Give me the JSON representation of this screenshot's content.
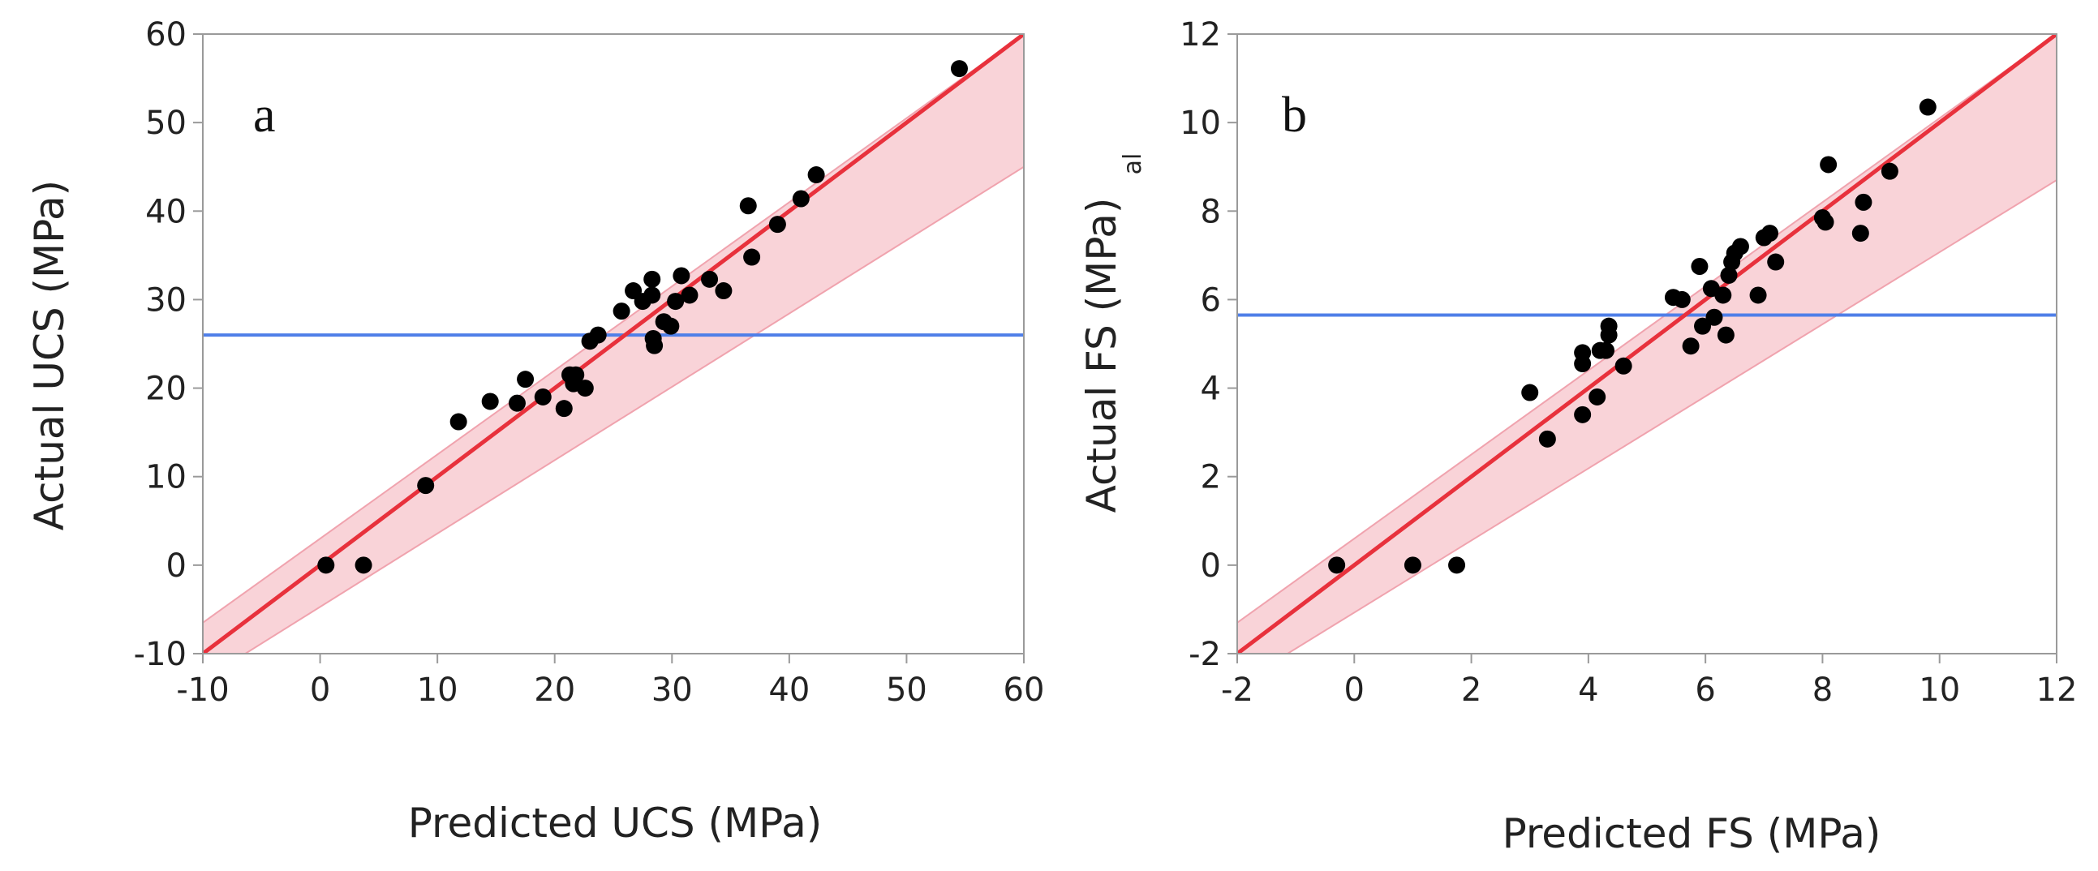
{
  "chart_data": [
    {
      "type": "scatter",
      "panel_label": "a",
      "xlabel": "Predicted UCS (MPa)",
      "ylabel": "Actual UCS (MPa)",
      "xlim": [
        -10,
        60
      ],
      "ylim": [
        -10,
        60
      ],
      "xticks": [
        "-10",
        "0",
        "10",
        "20",
        "30",
        "40",
        "50",
        "60"
      ],
      "yticks": [
        "-10",
        "0",
        "10",
        "20",
        "30",
        "40",
        "50",
        "60"
      ],
      "mean_line_y": 26,
      "fit_line": {
        "slope": 1,
        "intercept": 0
      },
      "band": {
        "upper_at_xmin": -6.5,
        "upper_at_xmax": 60,
        "lower_at_xmin": -13,
        "lower_at_xmax": 45
      },
      "points": [
        [
          0.5,
          0
        ],
        [
          3.7,
          0
        ],
        [
          9,
          9
        ],
        [
          11.8,
          16.2
        ],
        [
          14.5,
          18.5
        ],
        [
          16.8,
          18.3
        ],
        [
          17.5,
          21
        ],
        [
          19,
          19
        ],
        [
          20.8,
          17.7
        ],
        [
          21.3,
          21.5
        ],
        [
          21.8,
          21.5
        ],
        [
          21.6,
          20.5
        ],
        [
          22.6,
          20
        ],
        [
          23,
          25.3
        ],
        [
          23.7,
          26
        ],
        [
          25.7,
          28.7
        ],
        [
          26.7,
          31
        ],
        [
          27.5,
          29.8
        ],
        [
          28.3,
          32.3
        ],
        [
          28.4,
          25.6
        ],
        [
          28.5,
          24.8
        ],
        [
          28.3,
          30.5
        ],
        [
          29.3,
          27.5
        ],
        [
          29.9,
          27
        ],
        [
          30.3,
          29.8
        ],
        [
          30.8,
          32.7
        ],
        [
          31.5,
          30.5
        ],
        [
          33.2,
          32.3
        ],
        [
          34.4,
          31
        ],
        [
          36.5,
          40.6
        ],
        [
          36.8,
          34.8
        ],
        [
          39,
          38.5
        ],
        [
          41,
          41.4
        ],
        [
          42.3,
          44.1
        ],
        [
          54.5,
          56.1
        ]
      ],
      "colors": {
        "fit": "#e8313c",
        "band": "#f9d3d8",
        "band_edge": "#f0a3ae",
        "mean": "#4f7fe8",
        "point": "#000000"
      }
    },
    {
      "type": "scatter",
      "panel_label": "b",
      "xlabel": "Predicted FS (MPa)",
      "ylabel": "Actual FS (MPa)",
      "stray_label": "al",
      "xlim": [
        -2,
        12
      ],
      "ylim": [
        -2,
        12
      ],
      "xticks": [
        "-2",
        "0",
        "2",
        "4",
        "6",
        "8",
        "10",
        "12"
      ],
      "yticks": [
        "-2",
        "0",
        "2",
        "4",
        "6",
        "8",
        "10",
        "12"
      ],
      "mean_line_y": 5.65,
      "fit_line": {
        "slope": 1,
        "intercept": 0
      },
      "band": {
        "upper_at_xmin": -1.3,
        "upper_at_xmax": 12,
        "lower_at_xmin": -2.7,
        "lower_at_xmax": 8.7
      },
      "points": [
        [
          -0.3,
          0
        ],
        [
          1,
          0
        ],
        [
          1.75,
          0
        ],
        [
          3,
          3.9
        ],
        [
          3.3,
          2.85
        ],
        [
          3.9,
          4.55
        ],
        [
          3.9,
          4.8
        ],
        [
          3.9,
          3.4
        ],
        [
          4.15,
          3.8
        ],
        [
          4.2,
          4.85
        ],
        [
          4.3,
          4.85
        ],
        [
          4.35,
          5.2
        ],
        [
          4.35,
          5.4
        ],
        [
          4.6,
          4.5
        ],
        [
          5.45,
          6.05
        ],
        [
          5.6,
          6
        ],
        [
          5.75,
          4.95
        ],
        [
          5.9,
          6.75
        ],
        [
          5.95,
          5.4
        ],
        [
          6.1,
          6.25
        ],
        [
          6.15,
          5.6
        ],
        [
          6.3,
          6.1
        ],
        [
          6.35,
          5.2
        ],
        [
          6.4,
          6.55
        ],
        [
          6.45,
          6.85
        ],
        [
          6.5,
          7.05
        ],
        [
          6.6,
          7.2
        ],
        [
          6.9,
          6.1
        ],
        [
          7,
          7.4
        ],
        [
          7.1,
          7.5
        ],
        [
          7.2,
          6.85
        ],
        [
          8,
          7.85
        ],
        [
          8.05,
          7.75
        ],
        [
          8.1,
          9.05
        ],
        [
          8.65,
          7.5
        ],
        [
          8.7,
          8.2
        ],
        [
          9.15,
          8.9
        ],
        [
          9.8,
          10.35
        ]
      ],
      "colors": {
        "fit": "#e8313c",
        "band": "#f9d3d8",
        "band_edge": "#f0a3ae",
        "mean": "#4f7fe8",
        "point": "#000000"
      }
    }
  ]
}
